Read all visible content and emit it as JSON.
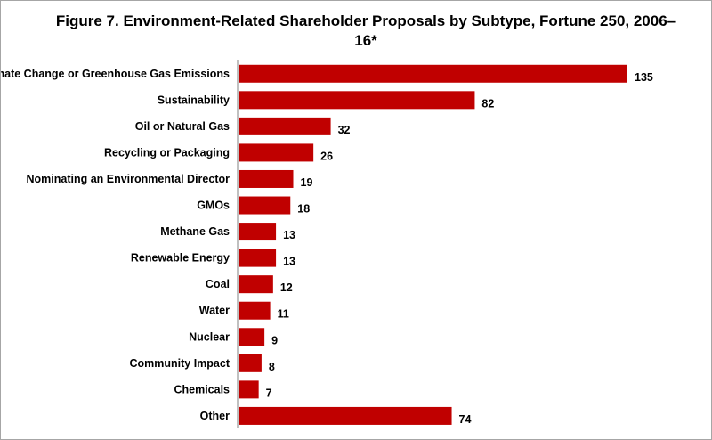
{
  "chart_data": {
    "type": "bar",
    "orientation": "horizontal",
    "title": "Figure 7. Environment-Related Shareholder Proposals by Subtype, Fortune 250, 2006–16*",
    "categories": [
      "Climate Change or Greenhouse Gas Emissions",
      "Sustainability",
      "Oil or Natural Gas",
      "Recycling or Packaging",
      "Nominating an Environmental Director",
      "GMOs",
      "Methane Gas",
      "Renewable Energy",
      "Coal",
      "Water",
      "Nuclear",
      "Community Impact",
      "Chemicals",
      "Other"
    ],
    "values": [
      135,
      82,
      32,
      26,
      19,
      18,
      13,
      13,
      12,
      11,
      9,
      8,
      7,
      74
    ],
    "xlim": [
      0,
      135
    ],
    "grid": false,
    "legend": "none",
    "bar_color": "#c00000"
  }
}
